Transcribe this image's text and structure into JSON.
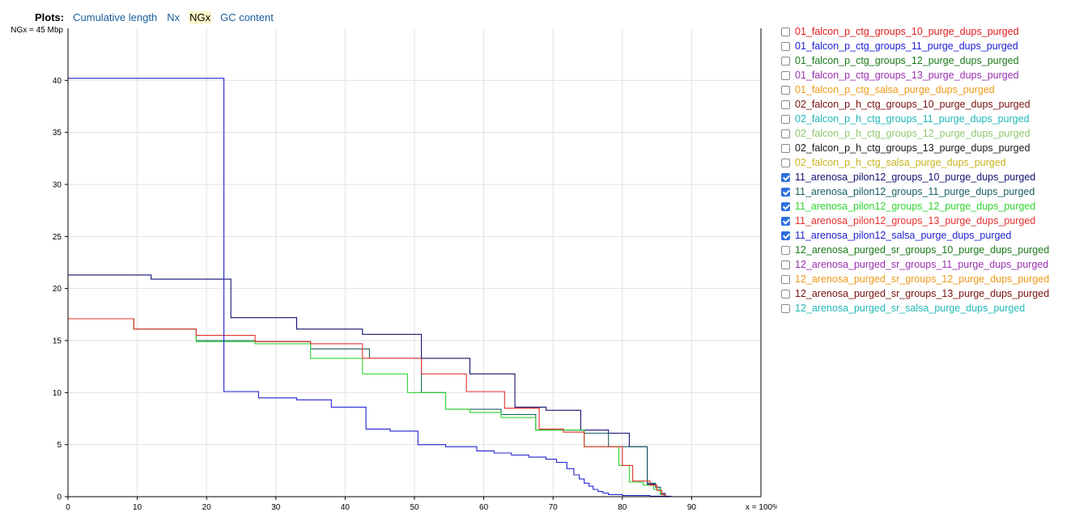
{
  "plots_nav": {
    "label": "Plots:",
    "tabs": [
      {
        "label": "Cumulative length",
        "active": false
      },
      {
        "label": "Nx",
        "active": false
      },
      {
        "label": "NGx",
        "active": true
      },
      {
        "label": "GC content",
        "active": false
      }
    ]
  },
  "chart_data": {
    "type": "line",
    "y_axis_caption": "NGx = 45 Mbp",
    "x_axis_caption": "x = 100%",
    "xlim": [
      0,
      100
    ],
    "ylim": [
      0,
      45
    ],
    "x_ticks": [
      "0",
      "10",
      "20",
      "30",
      "40",
      "50",
      "60",
      "70",
      "80",
      "90"
    ],
    "y_ticks": [
      "0",
      "5",
      "10",
      "15",
      "20",
      "25",
      "30",
      "35",
      "40"
    ],
    "grid": true,
    "legend_position": "right",
    "series": [
      {
        "name": "01_falcon_p_ctg_groups_10_purge_dups_purged",
        "color": "#e31a1c",
        "checked": false,
        "points": []
      },
      {
        "name": "01_falcon_p_ctg_groups_11_purge_dups_purged",
        "color": "#1f1fd4",
        "checked": false,
        "points": []
      },
      {
        "name": "01_falcon_p_ctg_groups_12_purge_dups_purged",
        "color": "#1a7a1a",
        "checked": false,
        "points": []
      },
      {
        "name": "01_falcon_p_ctg_groups_13_purge_dups_purged",
        "color": "#9a30b0",
        "checked": false,
        "points": []
      },
      {
        "name": "01_falcon_p_ctg_salsa_purge_dups_purged",
        "color": "#f09a1a",
        "checked": false,
        "points": []
      },
      {
        "name": "02_falcon_p_h_ctg_groups_10_purge_dups_purged",
        "color": "#7a1010",
        "checked": false,
        "points": []
      },
      {
        "name": "02_falcon_p_h_ctg_groups_11_purge_dups_purged",
        "color": "#20b8b8",
        "checked": false,
        "points": []
      },
      {
        "name": "02_falcon_p_h_ctg_groups_12_purge_dups_purged",
        "color": "#90c870",
        "checked": false,
        "points": []
      },
      {
        "name": "02_falcon_p_h_ctg_groups_13_purge_dups_purged",
        "color": "#1a1a1a",
        "checked": false,
        "points": []
      },
      {
        "name": "02_falcon_p_h_ctg_salsa_purge_dups_purged",
        "color": "#c8b41e",
        "checked": false,
        "points": []
      },
      {
        "name": "11_arenosa_pilon12_groups_10_purge_dups_purged",
        "color": "#101070",
        "checked": true,
        "points": [
          [
            0,
            21.3
          ],
          [
            12,
            21.3
          ],
          [
            12,
            20.9
          ],
          [
            23.5,
            20.9
          ],
          [
            23.5,
            17.2
          ],
          [
            33,
            17.2
          ],
          [
            33,
            16.1
          ],
          [
            42.5,
            16.1
          ],
          [
            42.5,
            15.6
          ],
          [
            51,
            15.6
          ],
          [
            51,
            13.3
          ],
          [
            58,
            13.3
          ],
          [
            58,
            11.8
          ],
          [
            64.5,
            11.8
          ],
          [
            64.5,
            8.6
          ],
          [
            69,
            8.6
          ],
          [
            69,
            8.3
          ],
          [
            74,
            8.3
          ],
          [
            74,
            6.4
          ],
          [
            78,
            6.4
          ],
          [
            78,
            6.1
          ],
          [
            81,
            6.1
          ],
          [
            81,
            4.8
          ],
          [
            83.6,
            4.8
          ],
          [
            83.6,
            1.2
          ],
          [
            84.8,
            1.2
          ],
          [
            84.8,
            0.9
          ],
          [
            85.5,
            0.9
          ],
          [
            85.5,
            0.3
          ],
          [
            86.2,
            0.3
          ],
          [
            86.2,
            0
          ]
        ]
      },
      {
        "name": "11_arenosa_pilon12_groups_11_purge_dups_purged",
        "color": "#1a6060",
        "checked": true,
        "points": [
          [
            0,
            17.1
          ],
          [
            9.5,
            17.1
          ],
          [
            9.5,
            16.1
          ],
          [
            18.5,
            16.1
          ],
          [
            18.5,
            15.0
          ],
          [
            27,
            15.0
          ],
          [
            27,
            14.9
          ],
          [
            35,
            14.9
          ],
          [
            35,
            14.2
          ],
          [
            43.5,
            14.2
          ],
          [
            43.5,
            13.3
          ],
          [
            51,
            13.3
          ],
          [
            51,
            10.0
          ],
          [
            54.5,
            10.0
          ],
          [
            54.5,
            8.4
          ],
          [
            62.5,
            8.4
          ],
          [
            62.5,
            7.9
          ],
          [
            67.5,
            7.9
          ],
          [
            67.5,
            6.4
          ],
          [
            70,
            6.4
          ],
          [
            70,
            6.4
          ],
          [
            74.5,
            6.4
          ],
          [
            74.5,
            6.1
          ],
          [
            78,
            6.1
          ],
          [
            78,
            4.8
          ],
          [
            83.6,
            4.8
          ],
          [
            83.6,
            1.3
          ],
          [
            84.8,
            1.3
          ],
          [
            84.8,
            0.9
          ],
          [
            85.5,
            0.9
          ],
          [
            85.5,
            0.2
          ],
          [
            86.2,
            0.2
          ],
          [
            86.2,
            0
          ]
        ]
      },
      {
        "name": "11_arenosa_pilon12_groups_12_purge_dups_purged",
        "color": "#2ed62e",
        "checked": true,
        "points": [
          [
            0,
            17.1
          ],
          [
            9.5,
            17.1
          ],
          [
            9.5,
            16.1
          ],
          [
            18.5,
            16.1
          ],
          [
            18.5,
            14.9
          ],
          [
            27,
            14.9
          ],
          [
            27,
            14.7
          ],
          [
            35,
            14.7
          ],
          [
            35,
            13.3
          ],
          [
            42.5,
            13.3
          ],
          [
            42.5,
            11.8
          ],
          [
            49,
            11.8
          ],
          [
            49,
            10.0
          ],
          [
            54.5,
            10.0
          ],
          [
            54.5,
            8.4
          ],
          [
            58,
            8.4
          ],
          [
            58,
            8.1
          ],
          [
            62.5,
            8.1
          ],
          [
            62.5,
            7.6
          ],
          [
            67.5,
            7.6
          ],
          [
            67.5,
            6.4
          ],
          [
            74.5,
            6.4
          ],
          [
            74.5,
            4.8
          ],
          [
            79.5,
            4.8
          ],
          [
            79.5,
            3.0
          ],
          [
            81,
            3.0
          ],
          [
            81,
            1.4
          ],
          [
            83,
            1.4
          ],
          [
            83,
            1.1
          ],
          [
            84.5,
            1.1
          ],
          [
            84.5,
            0.7
          ],
          [
            85.5,
            0.7
          ],
          [
            85.5,
            0.2
          ],
          [
            86,
            0.2
          ],
          [
            86,
            0
          ]
        ]
      },
      {
        "name": "11_arenosa_pilon12_groups_13_purge_dups_purged",
        "color": "#e83030",
        "checked": true,
        "points": [
          [
            0,
            17.1
          ],
          [
            9.5,
            17.1
          ],
          [
            9.5,
            16.1
          ],
          [
            18.5,
            16.1
          ],
          [
            18.5,
            15.5
          ],
          [
            27,
            15.5
          ],
          [
            27,
            14.9
          ],
          [
            35,
            14.9
          ],
          [
            35,
            14.7
          ],
          [
            42.5,
            14.7
          ],
          [
            42.5,
            13.3
          ],
          [
            51,
            13.3
          ],
          [
            51,
            11.8
          ],
          [
            57.5,
            11.8
          ],
          [
            57.5,
            10.1
          ],
          [
            63,
            10.1
          ],
          [
            63,
            8.5
          ],
          [
            68,
            8.5
          ],
          [
            68,
            6.5
          ],
          [
            71.5,
            6.5
          ],
          [
            71.5,
            6.2
          ],
          [
            74.5,
            6.2
          ],
          [
            74.5,
            4.8
          ],
          [
            80,
            4.8
          ],
          [
            80,
            3.0
          ],
          [
            81.5,
            3.0
          ],
          [
            81.5,
            1.5
          ],
          [
            84,
            1.5
          ],
          [
            84,
            1.1
          ],
          [
            85,
            1.1
          ],
          [
            85,
            0.6
          ],
          [
            85.7,
            0.6
          ],
          [
            85.7,
            0.2
          ],
          [
            86.2,
            0.2
          ],
          [
            86.2,
            0
          ]
        ]
      },
      {
        "name": "11_arenosa_pilon12_salsa_purge_dups_purged",
        "color": "#2020d0",
        "checked": true,
        "points": [
          [
            0,
            40.2
          ],
          [
            22.5,
            40.2
          ],
          [
            22.5,
            10.1
          ],
          [
            27.5,
            10.1
          ],
          [
            27.5,
            9.5
          ],
          [
            33,
            9.5
          ],
          [
            33,
            9.3
          ],
          [
            38,
            9.3
          ],
          [
            38,
            8.6
          ],
          [
            43,
            8.6
          ],
          [
            43,
            6.5
          ],
          [
            46.5,
            6.5
          ],
          [
            46.5,
            6.3
          ],
          [
            50.5,
            6.3
          ],
          [
            50.5,
            5.0
          ],
          [
            54.5,
            5.0
          ],
          [
            54.5,
            4.8
          ],
          [
            59,
            4.8
          ],
          [
            59,
            4.4
          ],
          [
            61.5,
            4.4
          ],
          [
            61.5,
            4.2
          ],
          [
            64,
            4.2
          ],
          [
            64,
            4.0
          ],
          [
            66.5,
            4.0
          ],
          [
            66.5,
            3.8
          ],
          [
            69,
            3.8
          ],
          [
            69,
            3.6
          ],
          [
            70.5,
            3.6
          ],
          [
            70.5,
            3.3
          ],
          [
            72,
            3.3
          ],
          [
            72,
            2.7
          ],
          [
            73,
            2.7
          ],
          [
            73,
            2.1
          ],
          [
            73.8,
            2.1
          ],
          [
            73.8,
            1.7
          ],
          [
            74.5,
            1.7
          ],
          [
            74.5,
            1.3
          ],
          [
            75.2,
            1.3
          ],
          [
            75.2,
            1.0
          ],
          [
            75.8,
            1.0
          ],
          [
            75.8,
            0.7
          ],
          [
            76.5,
            0.7
          ],
          [
            76.5,
            0.5
          ],
          [
            77.2,
            0.5
          ],
          [
            77.2,
            0.35
          ],
          [
            78,
            0.35
          ],
          [
            78,
            0.2
          ],
          [
            80,
            0.2
          ],
          [
            80,
            0.12
          ],
          [
            84,
            0.12
          ],
          [
            84,
            0.05
          ],
          [
            87,
            0.05
          ],
          [
            87,
            0
          ]
        ]
      },
      {
        "name": "12_arenosa_purged_sr_groups_10_purge_dups_purged",
        "color": "#1a7a1a",
        "checked": false,
        "points": []
      },
      {
        "name": "12_arenosa_purged_sr_groups_11_purge_dups_purged",
        "color": "#9a30b0",
        "checked": false,
        "points": []
      },
      {
        "name": "12_arenosa_purged_sr_groups_12_purge_dups_purged",
        "color": "#f09a1a",
        "checked": false,
        "points": []
      },
      {
        "name": "12_arenosa_purged_sr_groups_13_purge_dups_purged",
        "color": "#7a1010",
        "checked": false,
        "points": []
      },
      {
        "name": "12_arenosa_purged_sr_salsa_purge_dups_purged",
        "color": "#20b8b8",
        "checked": false,
        "points": []
      }
    ]
  }
}
